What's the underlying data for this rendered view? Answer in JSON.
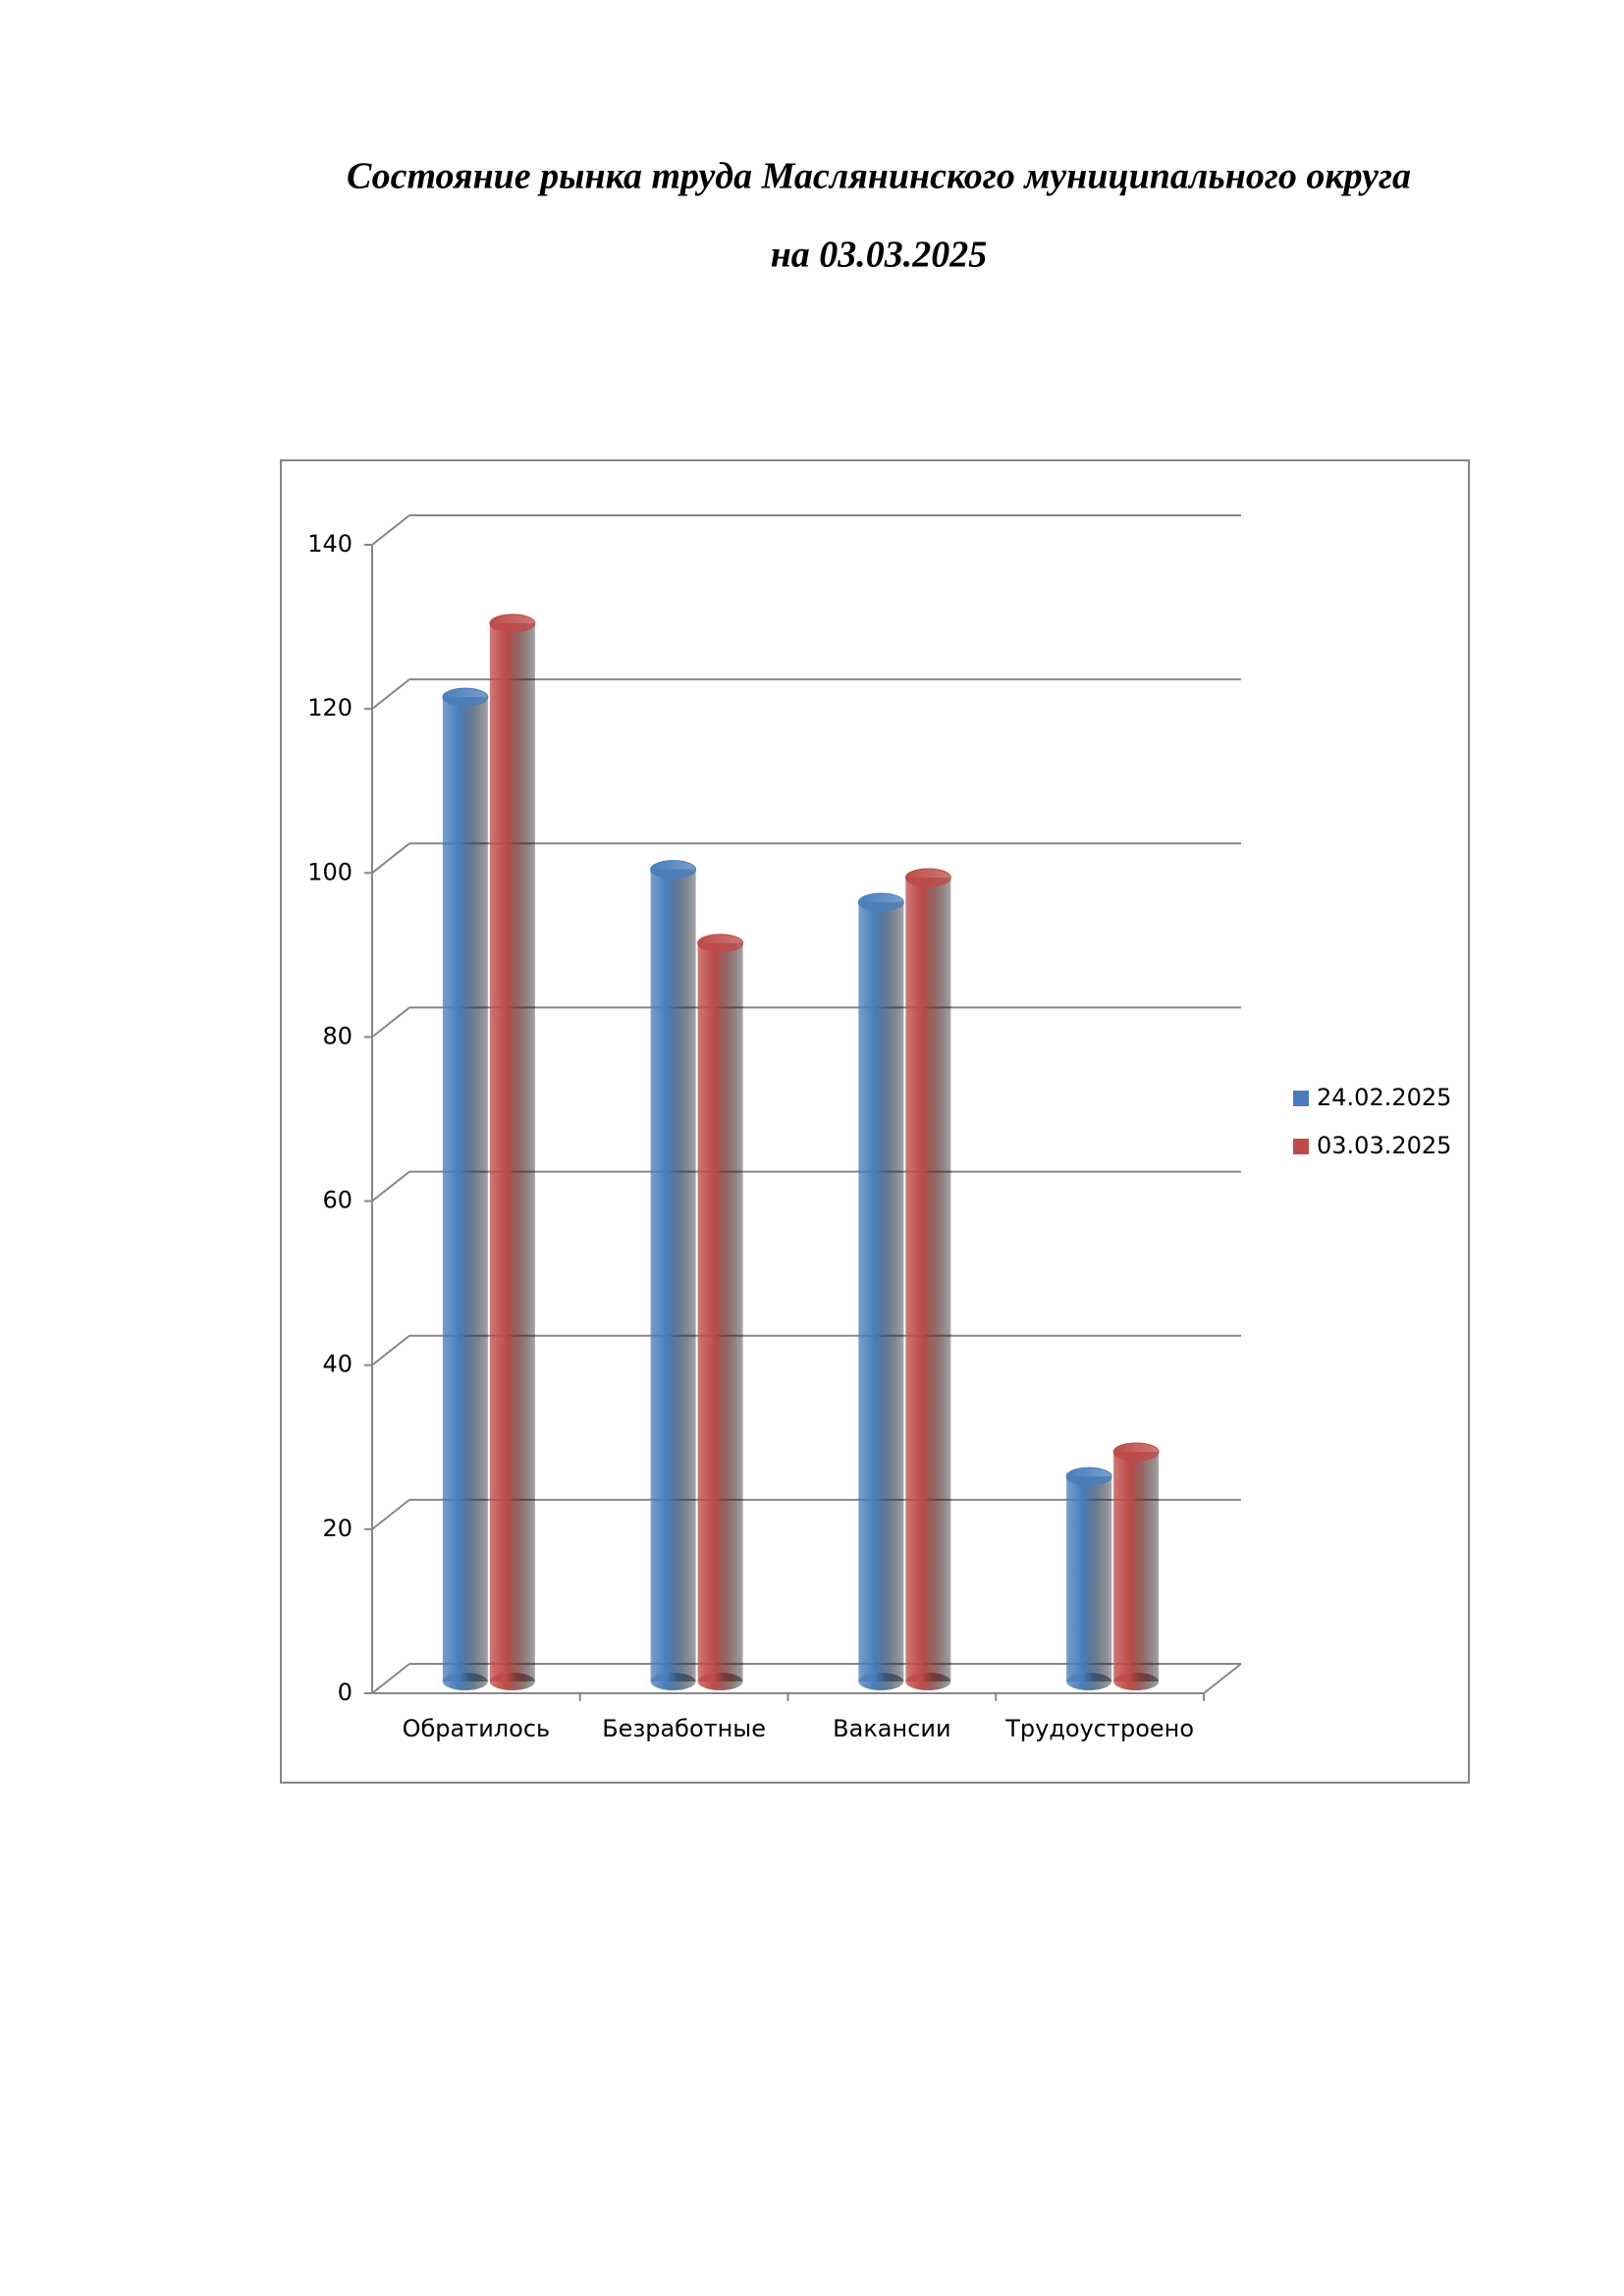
{
  "chart_data": {
    "type": "bar",
    "title": "Состояние рынка труда Маслянинского муниципального округа",
    "subtitle": "на 03.03.2025",
    "categories": [
      "Обратилось",
      "Безработные",
      "Вакансии",
      "Трудоустроено"
    ],
    "series": [
      {
        "name": "24.02.2025",
        "color": "#4a7ebb",
        "values": [
          120,
          99,
          95,
          25
        ]
      },
      {
        "name": "03.03.2025",
        "color": "#be4b48",
        "values": [
          129,
          90,
          98,
          28
        ]
      }
    ],
    "ylim": [
      0,
      140
    ],
    "yticks": [
      0,
      20,
      40,
      60,
      80,
      100,
      120,
      140
    ],
    "grid": true,
    "legend": "right"
  }
}
